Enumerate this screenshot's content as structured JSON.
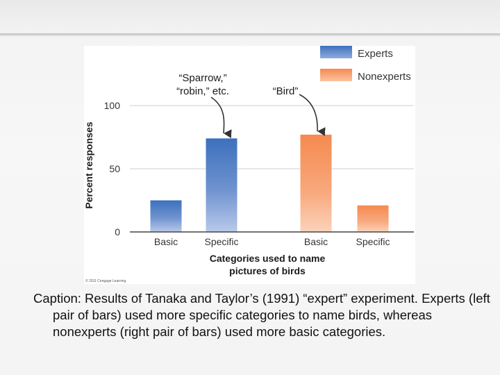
{
  "colors": {
    "experts": "#3f73bf",
    "nonexperts": "#f7945d"
  },
  "chart_data": {
    "type": "bar",
    "categories": [
      "Basic",
      "Specific",
      "Basic",
      "Specific"
    ],
    "series": [
      {
        "name": "Experts",
        "values": [
          25,
          74,
          null,
          null
        ]
      },
      {
        "name": "Nonexperts",
        "values": [
          null,
          null,
          77,
          21
        ]
      }
    ],
    "ylabel": "Percent responses",
    "xlabel_lines": [
      "Categories used to name",
      "pictures of birds"
    ],
    "ylim": [
      0,
      100
    ],
    "yticks": [
      0,
      50,
      100
    ],
    "grid": true,
    "legend": {
      "placement": "top-right",
      "entries": [
        "Experts",
        "Nonexperts"
      ]
    },
    "annotations": [
      {
        "lines": [
          "“Sparrow,”",
          "“robin,” etc."
        ],
        "target": 1
      },
      {
        "lines": [
          "“Bird”"
        ],
        "target": 2
      }
    ],
    "credit": "© 2011 Cengage Learning"
  },
  "caption": "Caption: Results of Tanaka and Taylor’s (1991) “expert” experiment. Experts (left pair of bars) used more specific categories to name birds, whereas nonexperts (right pair of bars) used more basic categories."
}
